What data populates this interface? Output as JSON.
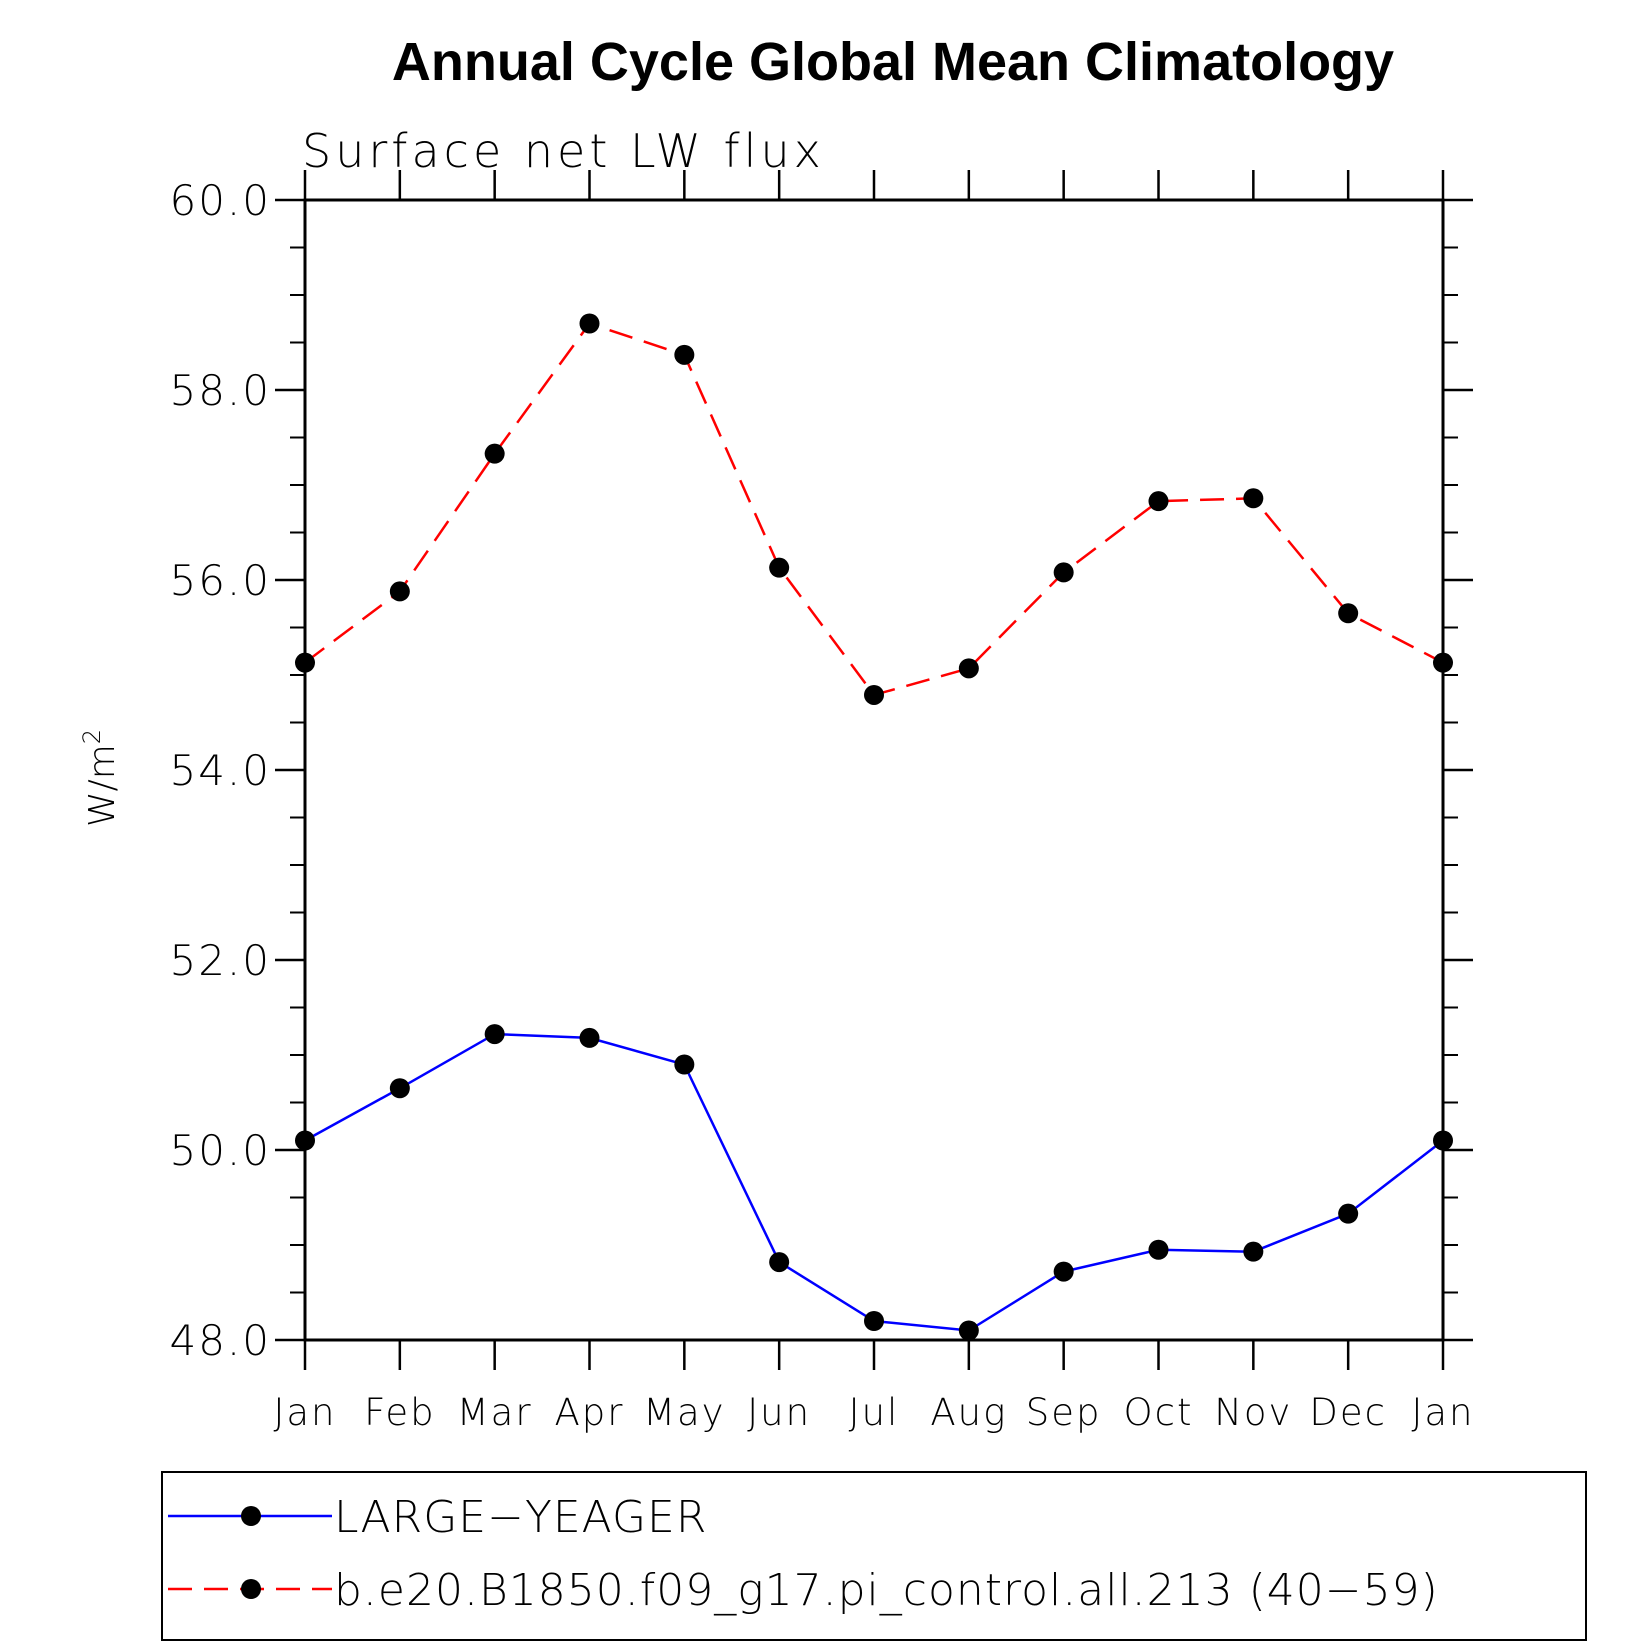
{
  "chart_data": {
    "type": "line",
    "title": "Annual Cycle Global Mean Climatology",
    "subtitle": "Surface net LW flux",
    "ylabel_base": "W/m",
    "ylabel_sup": "2",
    "categories": [
      "Jan",
      "Feb",
      "Mar",
      "Apr",
      "May",
      "Jun",
      "Jul",
      "Aug",
      "Sep",
      "Oct",
      "Nov",
      "Dec",
      "Jan"
    ],
    "ylim": [
      48.0,
      60.0
    ],
    "y_ticks": [
      "48.0",
      "50.0",
      "52.0",
      "54.0",
      "56.0",
      "58.0",
      "60.0"
    ],
    "y_tick_values": [
      48,
      50,
      52,
      54,
      56,
      58,
      60
    ],
    "legend_position": "bottom",
    "series": [
      {
        "name": "LARGE−YEAGER",
        "color": "#0000ff",
        "line_style": "solid",
        "marker": "filled-circle",
        "values": [
          50.1,
          50.65,
          51.22,
          51.18,
          50.9,
          48.82,
          48.2,
          48.1,
          48.72,
          48.95,
          48.93,
          49.33,
          50.1
        ]
      },
      {
        "name": "b.e20.B1850.f09_g17.pi_control.all.213 (40−59)",
        "color": "#ff0000",
        "line_style": "dashed",
        "marker": "filled-circle",
        "values": [
          55.13,
          55.88,
          57.33,
          58.7,
          58.37,
          56.13,
          54.79,
          55.07,
          56.08,
          56.83,
          56.86,
          55.65,
          55.13
        ]
      }
    ]
  }
}
